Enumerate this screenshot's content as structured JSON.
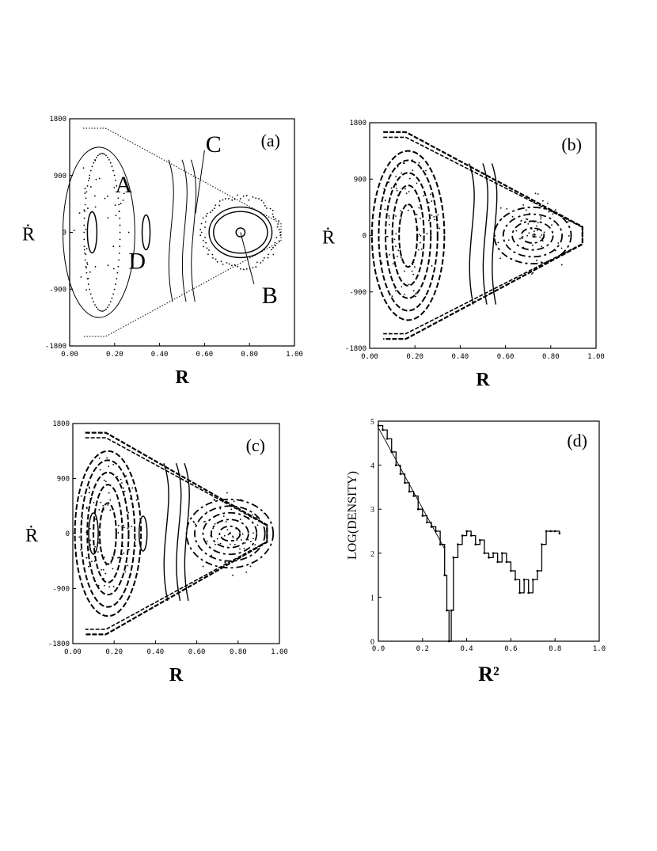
{
  "chart_data": [
    {
      "panel": "(a)",
      "type": "scatter",
      "xlabel": "R",
      "ylabel": "Ṙ",
      "xlim": [
        0,
        1
      ],
      "ylim": [
        -1800,
        1800
      ],
      "x_ticks": [
        "0.00",
        "0.20",
        "0.40",
        "0.60",
        "0.80",
        "1.00"
      ],
      "y_ticks": [
        "1800",
        "900",
        "0",
        "-900",
        "-1800"
      ],
      "annotations": [
        "A",
        "B",
        "C",
        "D"
      ],
      "grid": false
    },
    {
      "panel": "(b)",
      "type": "scatter",
      "xlabel": "R",
      "ylabel": "Ṙ",
      "xlim": [
        0,
        1
      ],
      "ylim": [
        -1800,
        1800
      ],
      "x_ticks": [
        "0.00",
        "0.20",
        "0.40",
        "0.60",
        "0.80",
        "1.00"
      ],
      "y_ticks": [
        "1800",
        "900",
        "0",
        "-900",
        "-1800"
      ],
      "grid": false
    },
    {
      "panel": "(c)",
      "type": "scatter",
      "xlabel": "R",
      "ylabel": "Ṙ",
      "xlim": [
        0,
        1
      ],
      "ylim": [
        -1800,
        1800
      ],
      "x_ticks": [
        "0.00",
        "0.20",
        "0.40",
        "0.60",
        "0.80",
        "1.00"
      ],
      "y_ticks": [
        "1800",
        "900",
        "0",
        "-900",
        "-1800"
      ],
      "grid": false
    },
    {
      "panel": "(d)",
      "type": "line",
      "xlabel": "R²",
      "ylabel": "LOG(DENSITY)",
      "xlim": [
        0,
        1
      ],
      "ylim": [
        0,
        5
      ],
      "x_ticks": [
        "0.0",
        "0.2",
        "0.4",
        "0.6",
        "0.8",
        "1.0"
      ],
      "y_ticks": [
        "0",
        "1",
        "2",
        "3",
        "4",
        "5"
      ],
      "grid": false,
      "series": [
        {
          "x": [
            0.0,
            0.02,
            0.04,
            0.06,
            0.08,
            0.1,
            0.12,
            0.14,
            0.16,
            0.18,
            0.2,
            0.22,
            0.24,
            0.26,
            0.28,
            0.3,
            0.31,
            0.32,
            0.33,
            0.34,
            0.36,
            0.38,
            0.4,
            0.42,
            0.44,
            0.46,
            0.48,
            0.5,
            0.52,
            0.54,
            0.56,
            0.58,
            0.6,
            0.62,
            0.64,
            0.66,
            0.68,
            0.7,
            0.72,
            0.74,
            0.76,
            0.78,
            0.8,
            0.82
          ],
          "y": [
            4.9,
            4.8,
            4.6,
            4.3,
            4.0,
            3.8,
            3.6,
            3.4,
            3.3,
            3.0,
            2.85,
            2.7,
            2.6,
            2.5,
            2.2,
            1.5,
            0.7,
            0.0,
            0.7,
            1.9,
            2.2,
            2.4,
            2.5,
            2.4,
            2.2,
            2.3,
            2.0,
            1.9,
            2.0,
            1.8,
            2.0,
            1.8,
            1.6,
            1.4,
            1.1,
            1.4,
            1.1,
            1.4,
            1.6,
            2.2,
            2.5,
            2.5,
            2.5,
            2.45
          ]
        },
        {
          "x": [
            0.0,
            0.3
          ],
          "y": [
            4.85,
            2.1
          ]
        }
      ]
    }
  ]
}
